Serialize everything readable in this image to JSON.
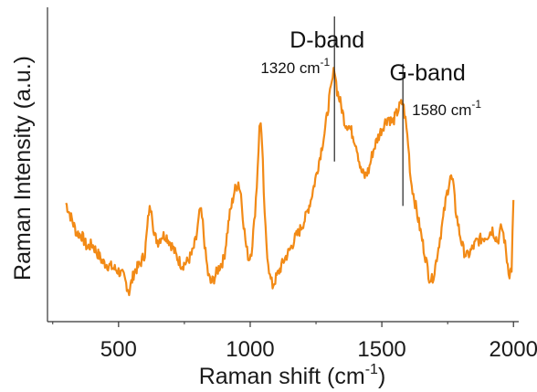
{
  "chart_data": {
    "type": "line",
    "title": "",
    "xlabel_main": "Raman shift (cm",
    "xlabel_sup": "-1",
    "xlabel_end": ")",
    "ylabel": "Raman Intensity (a.u.)",
    "xlim": [
      230,
      2020
    ],
    "ylim": [
      0,
      100
    ],
    "x_ticks": [
      500,
      1000,
      1500,
      2000
    ],
    "x_tick_labels": [
      "500",
      "1000",
      "1500",
      "2000"
    ],
    "x_minor_ticks": [
      250,
      750,
      1250,
      1750
    ],
    "y_tick_labels_shown": false,
    "grid": false,
    "series": [
      {
        "color": "#f28a16",
        "points": [
          [
            300,
            37
          ],
          [
            320,
            32
          ],
          [
            340,
            27
          ],
          [
            360,
            26
          ],
          [
            380,
            22
          ],
          [
            400,
            23
          ],
          [
            420,
            20
          ],
          [
            440,
            17
          ],
          [
            460,
            16
          ],
          [
            480,
            15
          ],
          [
            500,
            14
          ],
          [
            520,
            12
          ],
          [
            540,
            7
          ],
          [
            560,
            14
          ],
          [
            580,
            16
          ],
          [
            600,
            20
          ],
          [
            615,
            34
          ],
          [
            625,
            36
          ],
          [
            635,
            26
          ],
          [
            650,
            24
          ],
          [
            665,
            26
          ],
          [
            680,
            26
          ],
          [
            700,
            23
          ],
          [
            720,
            19
          ],
          [
            740,
            16
          ],
          [
            760,
            17
          ],
          [
            780,
            20
          ],
          [
            795,
            25
          ],
          [
            810,
            35
          ],
          [
            820,
            30
          ],
          [
            830,
            20
          ],
          [
            840,
            13
          ],
          [
            850,
            10
          ],
          [
            860,
            11
          ],
          [
            880,
            15
          ],
          [
            900,
            18
          ],
          [
            920,
            32
          ],
          [
            940,
            41
          ],
          [
            955,
            44
          ],
          [
            965,
            40
          ],
          [
            975,
            30
          ],
          [
            985,
            22
          ],
          [
            995,
            18
          ],
          [
            1005,
            21
          ],
          [
            1015,
            30
          ],
          [
            1025,
            43
          ],
          [
            1035,
            62
          ],
          [
            1040,
            65
          ],
          [
            1048,
            50
          ],
          [
            1055,
            32
          ],
          [
            1065,
            20
          ],
          [
            1075,
            12
          ],
          [
            1085,
            9
          ],
          [
            1095,
            11
          ],
          [
            1110,
            14
          ],
          [
            1130,
            18
          ],
          [
            1150,
            21
          ],
          [
            1170,
            25
          ],
          [
            1190,
            28
          ],
          [
            1210,
            32
          ],
          [
            1230,
            38
          ],
          [
            1250,
            46
          ],
          [
            1270,
            55
          ],
          [
            1285,
            62
          ],
          [
            1300,
            72
          ],
          [
            1310,
            77
          ],
          [
            1320,
            83
          ],
          [
            1330,
            75
          ],
          [
            1345,
            70
          ],
          [
            1360,
            64
          ],
          [
            1375,
            63
          ],
          [
            1390,
            60
          ],
          [
            1405,
            56
          ],
          [
            1420,
            48
          ],
          [
            1435,
            46
          ],
          [
            1450,
            48
          ],
          [
            1465,
            54
          ],
          [
            1480,
            58
          ],
          [
            1495,
            61
          ],
          [
            1510,
            64
          ],
          [
            1525,
            66
          ],
          [
            1540,
            64
          ],
          [
            1555,
            67
          ],
          [
            1570,
            70
          ],
          [
            1580,
            71
          ],
          [
            1590,
            65
          ],
          [
            1600,
            57
          ],
          [
            1610,
            45
          ],
          [
            1620,
            40
          ],
          [
            1635,
            33
          ],
          [
            1650,
            26
          ],
          [
            1665,
            19
          ],
          [
            1680,
            12
          ],
          [
            1690,
            11
          ],
          [
            1700,
            14
          ],
          [
            1715,
            22
          ],
          [
            1730,
            30
          ],
          [
            1745,
            39
          ],
          [
            1760,
            46
          ],
          [
            1770,
            44
          ],
          [
            1780,
            35
          ],
          [
            1795,
            27
          ],
          [
            1810,
            21
          ],
          [
            1825,
            19
          ],
          [
            1840,
            21
          ],
          [
            1860,
            24
          ],
          [
            1880,
            25
          ],
          [
            1900,
            26
          ],
          [
            1920,
            28
          ],
          [
            1940,
            24
          ],
          [
            1955,
            29
          ],
          [
            1965,
            25
          ],
          [
            1975,
            18
          ],
          [
            1985,
            13
          ],
          [
            1993,
            15
          ],
          [
            2000,
            38
          ]
        ]
      }
    ],
    "annotations": [
      {
        "name": "D-band",
        "label": "D-band",
        "wavenumber_label": "1320 cm",
        "sup": "-1",
        "x": 1320,
        "y_top": 100,
        "y_bottom": 51
      },
      {
        "name": "G-band",
        "label": "G-band",
        "wavenumber_label": "1580 cm",
        "sup": "-1",
        "x": 1580,
        "y_top": 84,
        "y_bottom": 36
      }
    ]
  }
}
